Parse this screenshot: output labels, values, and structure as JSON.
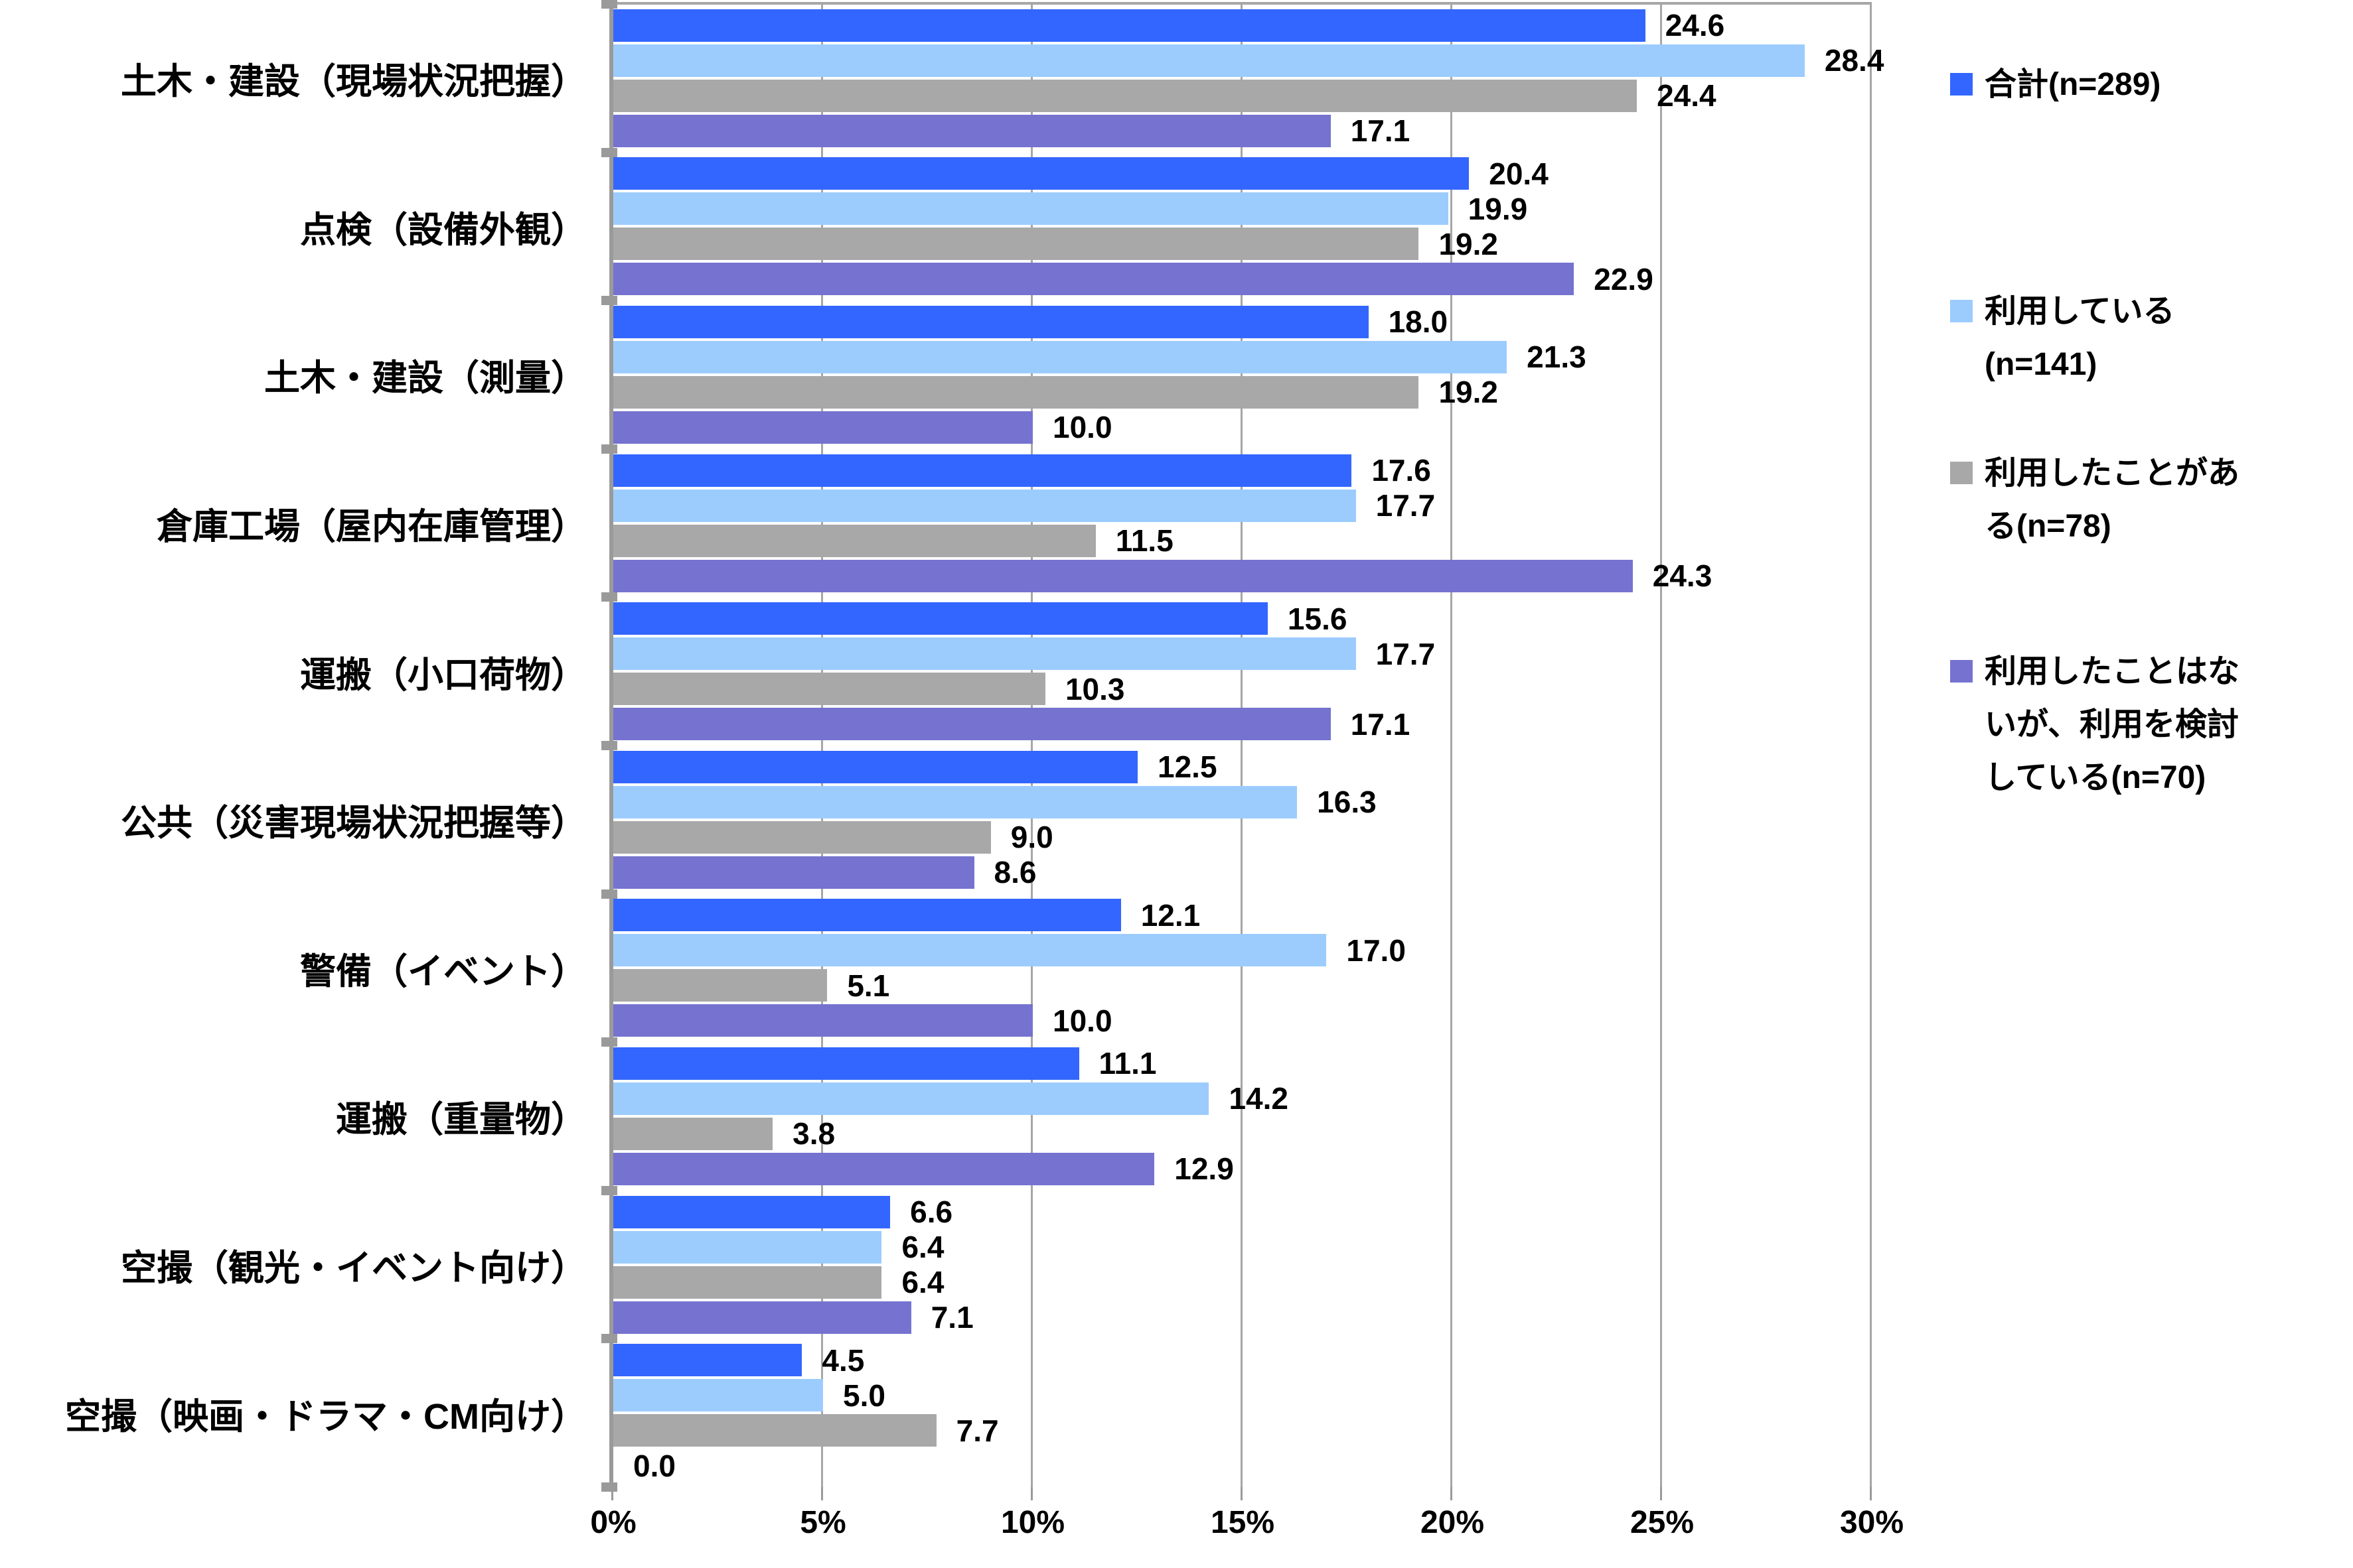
{
  "chart_data": {
    "type": "bar",
    "orientation": "horizontal",
    "title": "",
    "categories": [
      "土木・建設（現場状況把握）",
      "点検（設備外観）",
      "土木・建設（測量）",
      "倉庫工場（屋内在庫管理）",
      "運搬（小口荷物）",
      "公共（災害現場状況把握等）",
      "警備（イベント）",
      "運搬（重量物）",
      "空撮（観光・イベント向け）",
      "空撮（映画・ドラマ・CM向け）"
    ],
    "series": [
      {
        "name": "合計(n=289)",
        "legend_lines": [
          "合計(n=289)"
        ],
        "color": "#3366fe",
        "values": [
          24.6,
          20.4,
          18.0,
          17.6,
          15.6,
          12.5,
          12.1,
          11.1,
          6.6,
          4.5
        ]
      },
      {
        "name": "利用している(n=141)",
        "legend_lines": [
          "利用している",
          "(n=141)"
        ],
        "color": "#9cccfe",
        "values": [
          28.4,
          19.9,
          21.3,
          17.7,
          17.7,
          16.3,
          17.0,
          14.2,
          6.4,
          5.0
        ]
      },
      {
        "name": "利用したことがある(n=78)",
        "legend_lines": [
          "利用したことがあ",
          "る(n=78)"
        ],
        "color": "#a8a8a8",
        "values": [
          24.4,
          19.2,
          19.2,
          11.5,
          10.3,
          9.0,
          5.1,
          3.8,
          6.4,
          7.7
        ]
      },
      {
        "name": "利用したことはないが、利用を検討している(n=70)",
        "legend_lines": [
          "利用したことはな",
          "いが、利用を検討",
          "している(n=70)"
        ],
        "color": "#7573cf",
        "values": [
          17.1,
          22.9,
          10.0,
          24.3,
          17.1,
          8.6,
          10.0,
          12.9,
          7.1,
          0.0
        ]
      }
    ],
    "value_labels_shown": true,
    "value_label_decimals": 1,
    "x_axis": {
      "min": 0,
      "max": 30,
      "tick_step": 5,
      "ticks": [
        "0%",
        "5%",
        "10%",
        "15%",
        "20%",
        "25%",
        "30%"
      ],
      "grid": true
    },
    "legend_position": "right",
    "colors": {
      "gridline": "#a6a6a6",
      "axis": "#9a9a9a",
      "text": "#000000",
      "background": "#ffffff"
    }
  }
}
